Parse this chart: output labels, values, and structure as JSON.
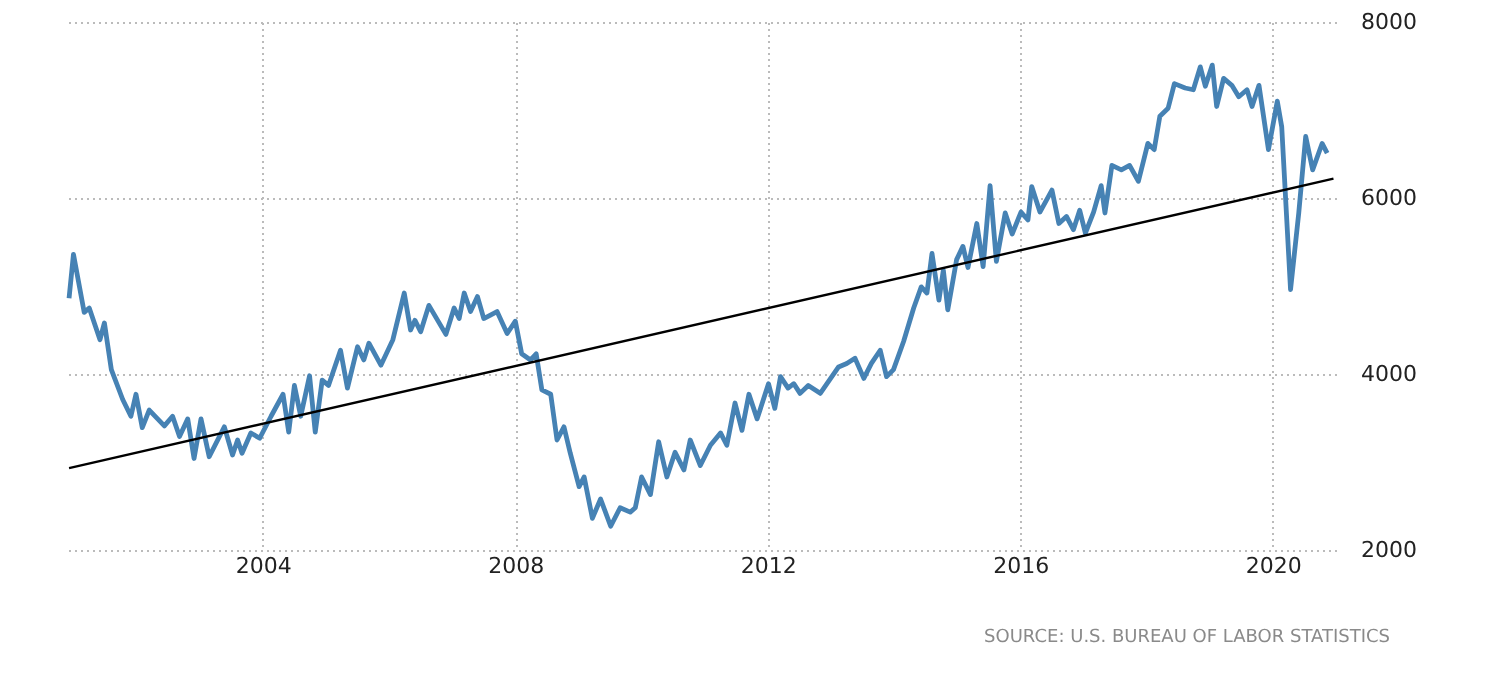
{
  "chart_data": {
    "type": "line",
    "x": [
      2000.93,
      2001.0,
      2001.17,
      2001.25,
      2001.42,
      2001.49,
      2001.6,
      2001.78,
      2001.91,
      2001.99,
      2002.09,
      2002.2,
      2002.44,
      2002.57,
      2002.68,
      2002.81,
      2002.91,
      2003.02,
      2003.15,
      2003.39,
      2003.52,
      2003.6,
      2003.67,
      2003.81,
      2003.95,
      2004.13,
      2004.32,
      2004.41,
      2004.5,
      2004.6,
      2004.74,
      2004.83,
      2004.94,
      2005.04,
      2005.23,
      2005.34,
      2005.5,
      2005.6,
      2005.68,
      2005.87,
      2006.06,
      2006.24,
      2006.34,
      2006.41,
      2006.5,
      2006.63,
      2006.9,
      2007.03,
      2007.11,
      2007.19,
      2007.29,
      2007.4,
      2007.5,
      2007.71,
      2007.87,
      2008.0,
      2008.1,
      2008.24,
      2008.33,
      2008.42,
      2008.56,
      2008.66,
      2008.77,
      2008.87,
      2009.01,
      2009.09,
      2009.22,
      2009.35,
      2009.51,
      2009.66,
      2009.82,
      2009.9,
      2010.0,
      2010.14,
      2010.27,
      2010.4,
      2010.53,
      2010.67,
      2010.77,
      2010.93,
      2011.09,
      2011.25,
      2011.35,
      2011.48,
      2011.59,
      2011.7,
      2011.83,
      2012.01,
      2012.11,
      2012.2,
      2012.32,
      2012.41,
      2012.51,
      2012.64,
      2012.83,
      2013.12,
      2013.25,
      2013.38,
      2013.52,
      2013.64,
      2013.78,
      2013.88,
      2013.99,
      2014.15,
      2014.31,
      2014.43,
      2014.52,
      2014.6,
      2014.71,
      2014.78,
      2014.85,
      2014.99,
      2015.09,
      2015.17,
      2015.31,
      2015.41,
      2015.52,
      2015.62,
      2015.76,
      2015.87,
      2016.01,
      2016.12,
      2016.18,
      2016.31,
      2016.5,
      2016.61,
      2016.73,
      2016.84,
      2016.94,
      2017.03,
      2017.16,
      2017.28,
      2017.34,
      2017.45,
      2017.6,
      2017.73,
      2017.87,
      2018.02,
      2018.12,
      2018.21,
      2018.34,
      2018.44,
      2018.61,
      2018.74,
      2018.85,
      2018.93,
      2019.04,
      2019.11,
      2019.22,
      2019.35,
      2019.46,
      2019.59,
      2019.67,
      2019.78,
      2019.93,
      2020.07,
      2020.14,
      2020.28,
      2020.41,
      2020.52,
      2020.63,
      2020.78,
      2020.86
    ],
    "series": [
      {
        "color": "#4682b4",
        "values": [
          4860,
          5360,
          4700,
          4750,
          4390,
          4580,
          4050,
          3710,
          3520,
          3770,
          3390,
          3590,
          3410,
          3520,
          3290,
          3490,
          3040,
          3490,
          3060,
          3400,
          3080,
          3250,
          3100,
          3330,
          3270,
          3520,
          3770,
          3340,
          3870,
          3520,
          3980,
          3340,
          3930,
          3870,
          4270,
          3840,
          4310,
          4160,
          4350,
          4100,
          4390,
          4920,
          4500,
          4610,
          4480,
          4780,
          4450,
          4750,
          4630,
          4920,
          4710,
          4880,
          4630,
          4710,
          4460,
          4600,
          4230,
          4160,
          4230,
          3820,
          3770,
          3250,
          3400,
          3100,
          2720,
          2830,
          2360,
          2580,
          2270,
          2480,
          2430,
          2480,
          2830,
          2630,
          3230,
          2830,
          3110,
          2910,
          3250,
          2960,
          3190,
          3330,
          3190,
          3670,
          3360,
          3770,
          3490,
          3890,
          3610,
          3970,
          3840,
          3890,
          3780,
          3870,
          3780,
          4080,
          4120,
          4180,
          3950,
          4120,
          4270,
          3970,
          4050,
          4370,
          4750,
          4990,
          4920,
          5370,
          4840,
          5180,
          4730,
          5300,
          5450,
          5210,
          5710,
          5220,
          6140,
          5280,
          5830,
          5590,
          5840,
          5750,
          6130,
          5840,
          6090,
          5710,
          5790,
          5640,
          5860,
          5600,
          5840,
          6140,
          5830,
          6370,
          6320,
          6370,
          6190,
          6620,
          6550,
          6930,
          7020,
          7300,
          7250,
          7230,
          7490,
          7270,
          7510,
          7040,
          7360,
          7280,
          7150,
          7230,
          7040,
          7280,
          6550,
          7100,
          6810,
          4960,
          5830,
          6700,
          6320,
          6620,
          6510
        ]
      },
      {
        "type": "line",
        "color": "#000000",
        "x": [
          2000.93,
          2020.96
        ],
        "values": [
          2930,
          6220
        ]
      }
    ],
    "xlim": [
      2000.85,
      2021.0
    ],
    "ylim": [
      2000,
      8000
    ],
    "xticks": [
      2004,
      2008,
      2012,
      2016,
      2020
    ],
    "yticks": [
      2000,
      4000,
      6000,
      8000
    ],
    "grid": true,
    "annotations": [
      "SOURCE: U.S. BUREAU OF LABOR STATISTICS"
    ]
  }
}
